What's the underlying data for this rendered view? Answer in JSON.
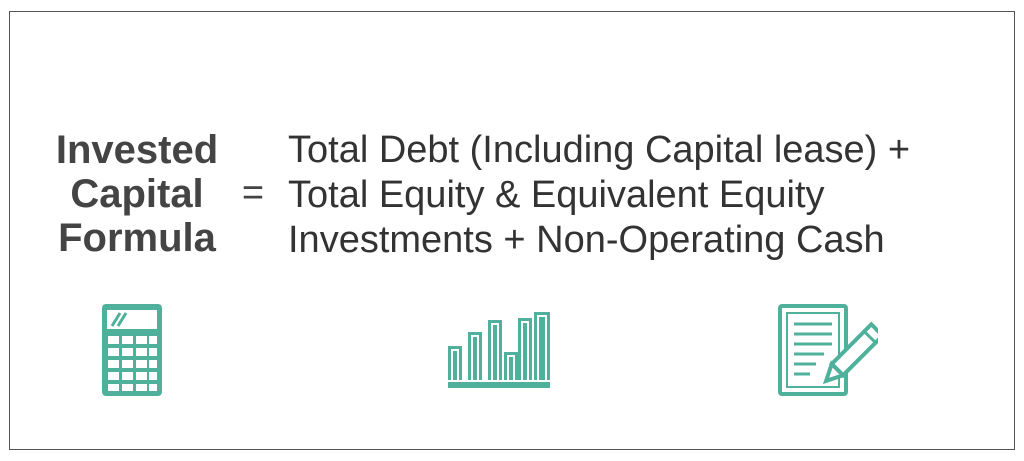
{
  "formula": {
    "name_lines": [
      "Invested",
      "Capital",
      "Formula"
    ],
    "equals_sign": "=",
    "expression_lines": [
      "Total Debt (Including Capital lease) +",
      "Total Equity & Equivalent Equity",
      "Investments + Non-Operating Cash"
    ]
  },
  "icons": [
    "calculator-icon",
    "bar-chart-icon",
    "document-pencil-icon"
  ],
  "colors": {
    "accent": "#4fb19b",
    "label_text": "#444444",
    "body_text": "#333333",
    "frame": "#555555"
  }
}
